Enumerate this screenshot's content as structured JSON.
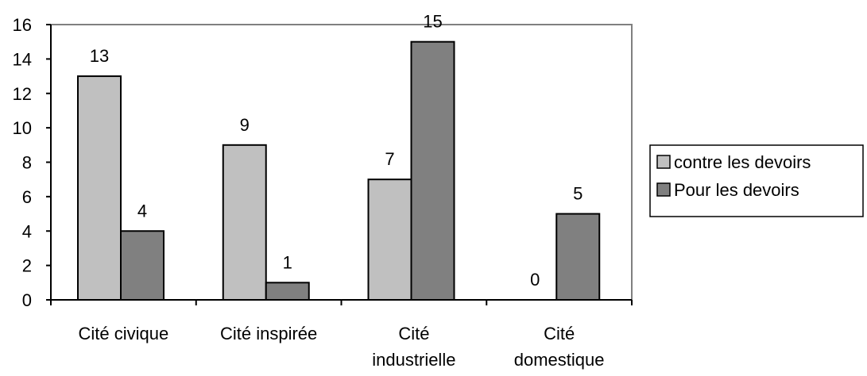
{
  "chart_data": {
    "type": "bar",
    "categories": [
      [
        "Cité civique"
      ],
      [
        "Cité inspirée"
      ],
      [
        "Cité",
        "industrielle"
      ],
      [
        "Cité",
        "domestique"
      ]
    ],
    "series": [
      {
        "name": "contre les devoirs",
        "values": [
          13,
          9,
          7,
          0
        ],
        "color": "#c0c0c0"
      },
      {
        "name": "Pour les devoirs",
        "values": [
          4,
          1,
          15,
          5
        ],
        "color": "#808080"
      }
    ],
    "title": "",
    "xlabel": "",
    "ylabel": "",
    "ylim": [
      0,
      16
    ],
    "yticks": [
      0,
      2,
      4,
      6,
      8,
      10,
      12,
      14,
      16
    ],
    "grid": false,
    "legend": "right"
  }
}
